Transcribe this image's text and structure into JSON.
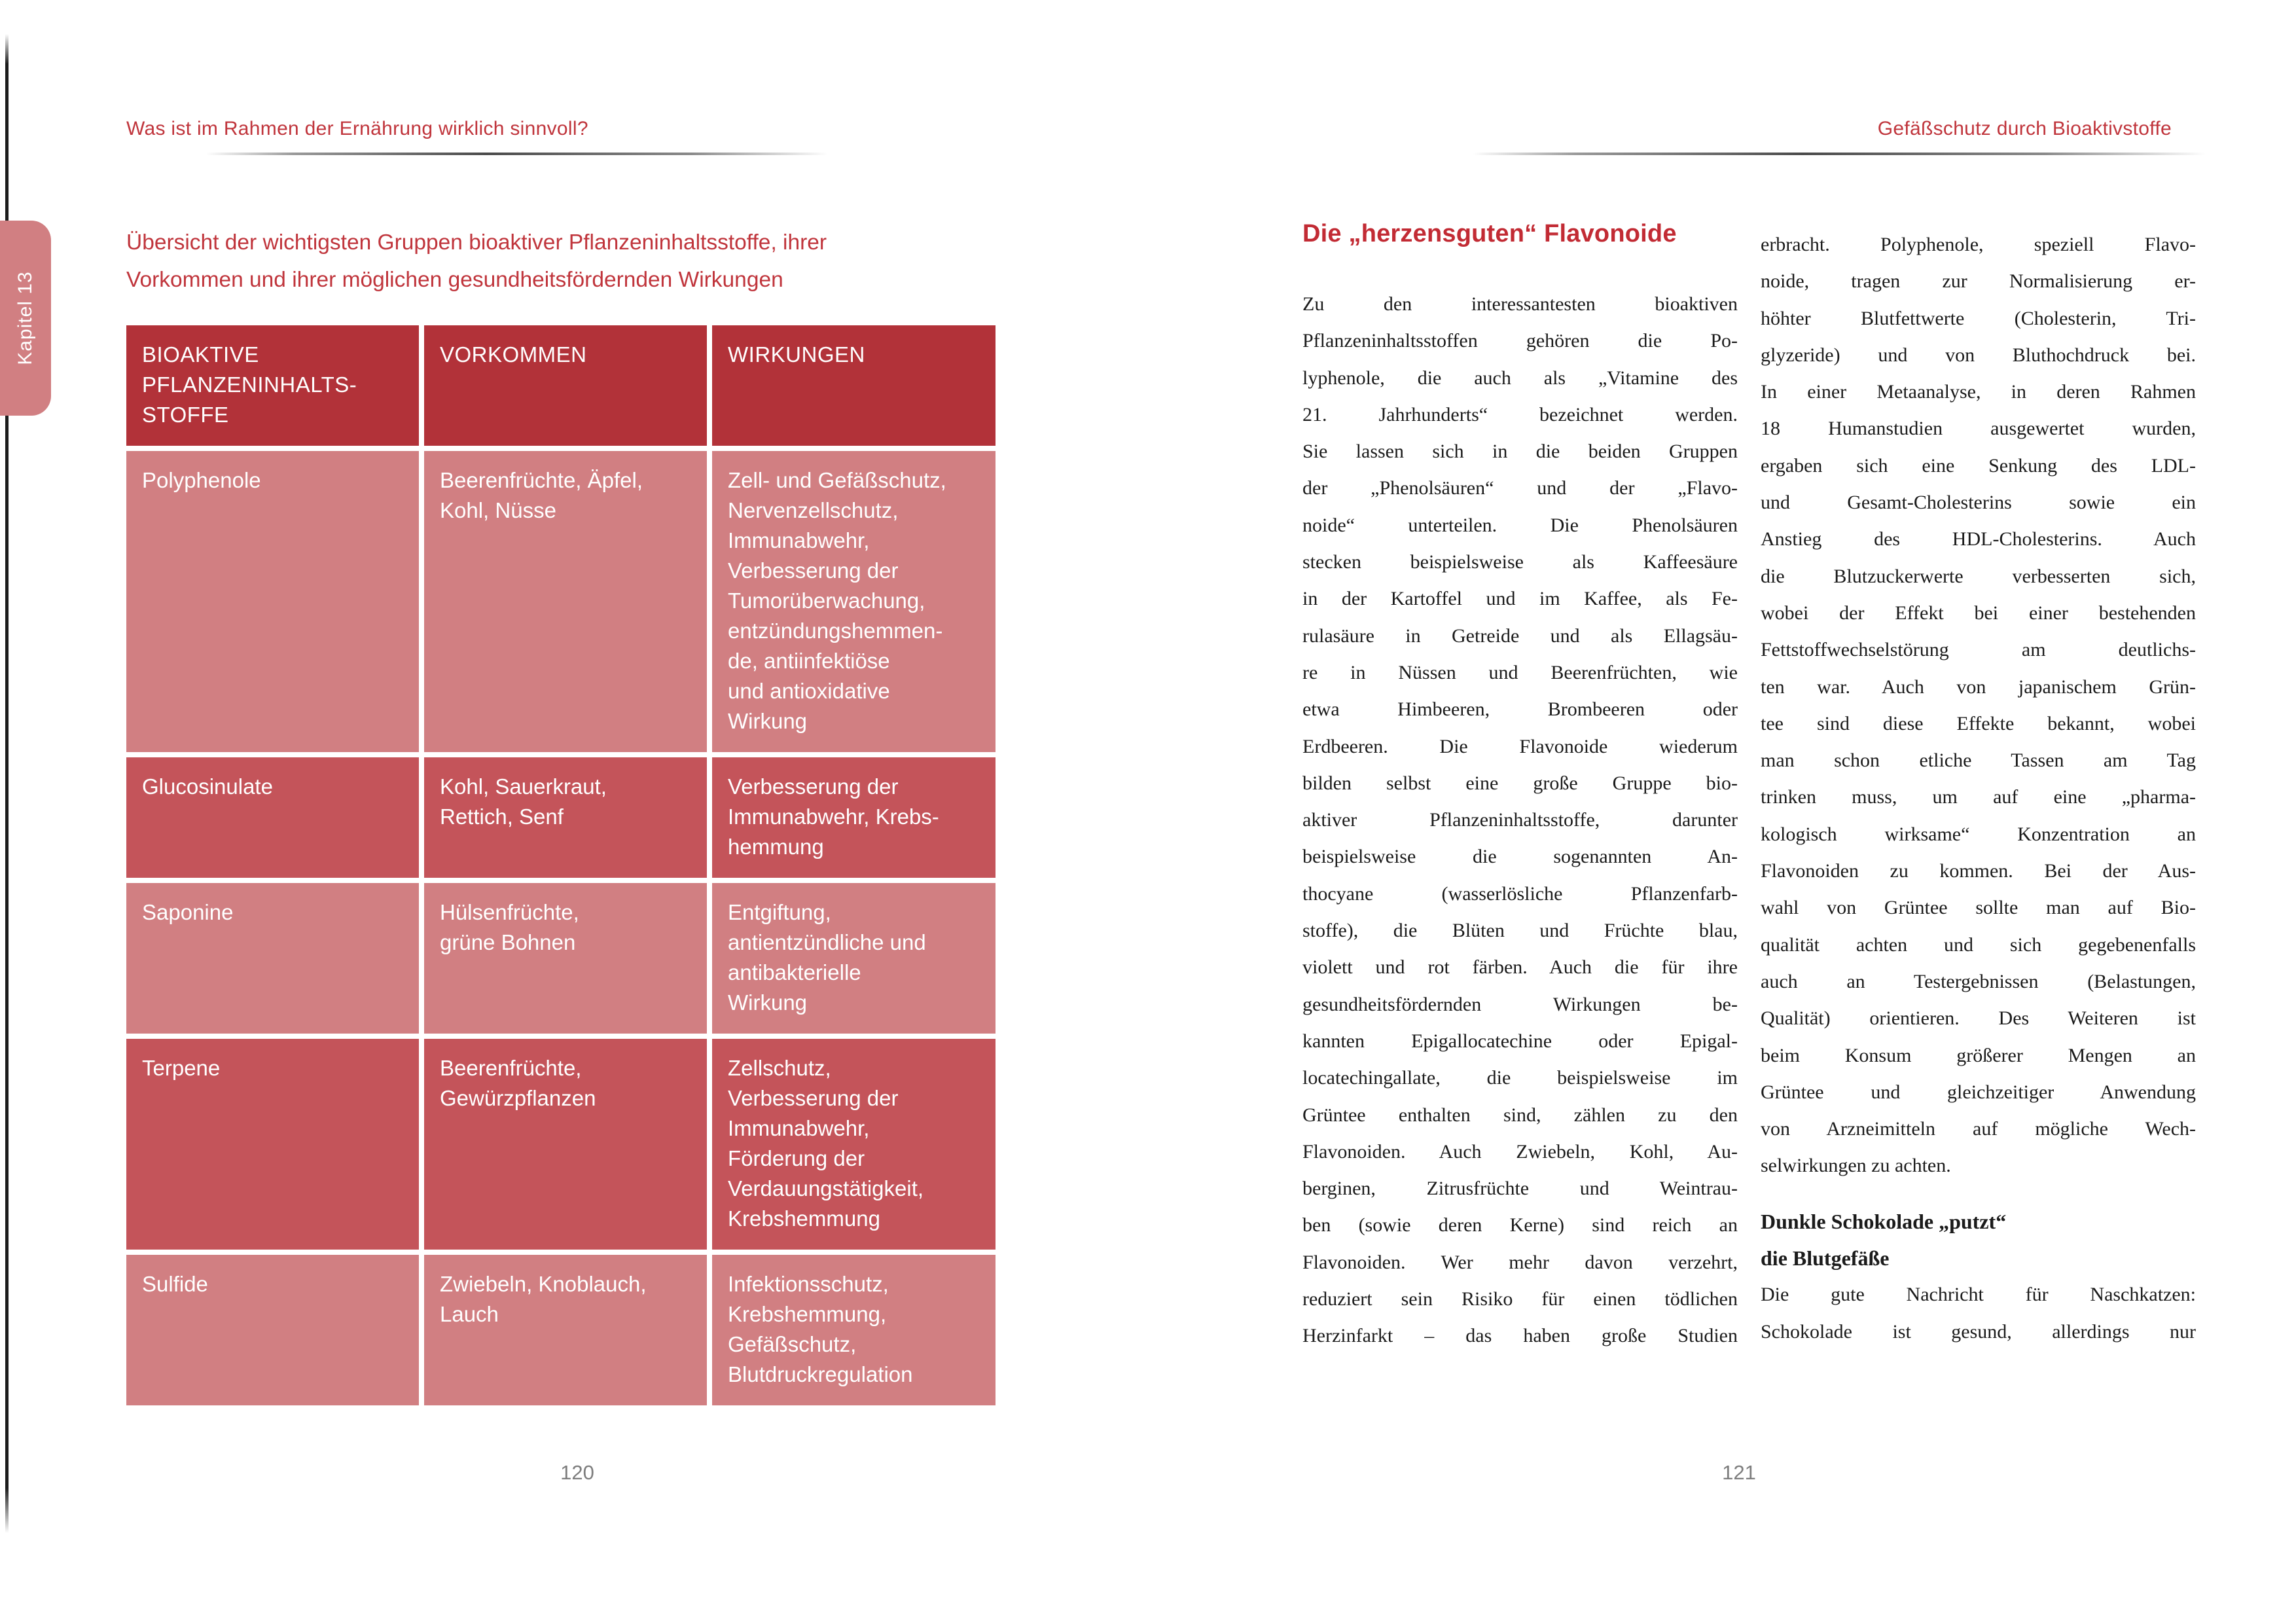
{
  "colors": {
    "accent_red_text": "#C0353C",
    "table_header_bg": "#B23239",
    "table_row_dark": "#C4545A",
    "table_row_light": "#D17F82",
    "body_text": "#1b1b1b",
    "page_number_gray": "#7d7d7d"
  },
  "left_page": {
    "running_head": "Was ist im Rahmen der Ernährung wirklich sinnvoll?",
    "chapter_tab": "Kapitel 13",
    "table_title_lines": [
      "Übersicht der wichtigsten Gruppen bioaktiver Pflanzeninhaltsstoffe, ihrer",
      "Vorkommen und ihrer möglichen gesundheitsfördernden Wirkungen"
    ],
    "table": {
      "header_cells": [
        [
          "BIOAKTIVE",
          "PFLANZENINHALTS-",
          "STOFFE"
        ],
        [
          "VORKOMMEN"
        ],
        [
          "WIRKUNGEN"
        ]
      ],
      "rows": [
        {
          "shade": "light",
          "cells": [
            [
              "Polyphenole"
            ],
            [
              "Beerenfrüchte, Äpfel,",
              "Kohl, Nüsse"
            ],
            [
              "Zell- und Gefäßschutz,",
              "Nervenzellschutz,",
              "Immunabwehr,",
              "Verbesserung der",
              "Tumorüberwachung,",
              "entzündungshemmen-",
              "de, antiinfektiöse",
              "und antioxidative",
              "Wirkung"
            ]
          ]
        },
        {
          "shade": "dark",
          "cells": [
            [
              "Glucosinulate"
            ],
            [
              "Kohl, Sauerkraut,",
              "Rettich, Senf"
            ],
            [
              "Verbesserung der",
              "Immunabwehr, Krebs-",
              "hemmung"
            ]
          ]
        },
        {
          "shade": "light",
          "cells": [
            [
              "Saponine"
            ],
            [
              "Hülsenfrüchte,",
              "grüne Bohnen"
            ],
            [
              "Entgiftung,",
              "antientzündliche und",
              "antibakterielle",
              "Wirkung"
            ]
          ]
        },
        {
          "shade": "dark",
          "cells": [
            [
              "Terpene"
            ],
            [
              "Beerenfrüchte,",
              "Gewürzpflanzen"
            ],
            [
              "Zellschutz,",
              "Verbesserung der",
              "Immunabwehr,",
              "Förderung der",
              "Verdauungstätigkeit,",
              "Krebshemmung"
            ]
          ]
        },
        {
          "shade": "light",
          "cells": [
            [
              "Sulfide"
            ],
            [
              "Zwiebeln, Knoblauch,",
              "Lauch"
            ],
            [
              "Infektionsschutz,",
              "Krebshemmung,",
              "Gefäßschutz,",
              "Blutdruckregulation"
            ]
          ]
        }
      ]
    },
    "page_number": "120"
  },
  "right_page": {
    "running_head": "Gefäßschutz durch Bioaktivstoffe",
    "heading": "Die „herzensguten“ Flavonoide",
    "column1_lines": [
      "Zu den interessantesten bioaktiven",
      "Pflanzeninhaltsstoffen gehören die Po-",
      "lyphenole, die auch als „Vitamine des",
      "21. Jahrhunderts“ bezeichnet werden.",
      "Sie lassen sich in die beiden Gruppen",
      "der „Phenolsäuren“ und der „Flavo-",
      "noide“ unterteilen. Die Phenolsäuren",
      "stecken beispielsweise als Kaffeesäure",
      "in der Kartoffel und im Kaffee, als Fe-",
      "rulasäure in Getreide und als Ellagsäu-",
      "re in Nüssen und Beerenfrüchten, wie",
      "etwa Himbeeren, Brombeeren oder",
      "Erdbeeren. Die Flavonoide wiederum",
      "bilden selbst eine große Gruppe bio-",
      "aktiver Pflanzeninhaltsstoffe, darunter",
      "beispielsweise die sogenannten An-",
      "thocyane (wasserlösliche Pflanzenfarb-",
      "stoffe), die Blüten und Früchte blau,",
      "violett und rot färben. Auch die für ihre",
      "gesundheitsfördernden Wirkungen be-",
      "kannten Epigallocatechine oder Epigal-",
      "locatechingallate, die beispielsweise im",
      "Grüntee enthalten sind, zählen zu den",
      "Flavonoiden. Auch Zwiebeln, Kohl, Au-",
      "berginen, Zitrusfrüchte und Weintrau-",
      "ben (sowie deren Kerne) sind reich an",
      "Flavonoiden. Wer mehr davon verzehrt,",
      "reduziert sein Risiko für einen tödlichen",
      "Herzinfarkt – das haben große Studien"
    ],
    "column2_blocks": [
      {
        "style": "justify",
        "text": "erbracht. Polyphenole, speziell Flavo-"
      },
      {
        "style": "justify",
        "text": "noide, tragen zur Normalisierung er-"
      },
      {
        "style": "justify",
        "text": "höhter Blutfettwerte (Cholesterin, Tri-"
      },
      {
        "style": "justify",
        "text": "glyzeride) und von Bluthochdruck bei."
      },
      {
        "style": "justify",
        "text": "In einer Metaanalyse, in deren Rahmen"
      },
      {
        "style": "justify",
        "text": "18 Humanstudien ausgewertet wurden,"
      },
      {
        "style": "justify",
        "text": "ergaben sich eine Senkung des LDL-"
      },
      {
        "style": "justify",
        "text": "und Gesamt-Cholesterins sowie ein"
      },
      {
        "style": "justify",
        "text": "Anstieg des HDL-Cholesterins. Auch"
      },
      {
        "style": "justify",
        "text": "die Blutzuckerwerte verbesserten sich,"
      },
      {
        "style": "justify",
        "text": "wobei der Effekt bei einer bestehenden"
      },
      {
        "style": "justify",
        "text": "Fettstoffwechselstörung am deutlichs-"
      },
      {
        "style": "justify",
        "text": "ten war. Auch von japanischem Grün-"
      },
      {
        "style": "justify",
        "text": "tee sind diese Effekte bekannt, wobei"
      },
      {
        "style": "justify",
        "text": "man schon etliche Tassen am Tag"
      },
      {
        "style": "justify",
        "text": "trinken muss, um auf eine „pharma-"
      },
      {
        "style": "justify",
        "text": "kologisch wirksame“ Konzentration an"
      },
      {
        "style": "justify",
        "text": "Flavonoiden zu kommen. Bei der Aus-"
      },
      {
        "style": "justify",
        "text": "wahl von Grüntee sollte man auf Bio-"
      },
      {
        "style": "justify",
        "text": "qualität achten und sich gegebenenfalls"
      },
      {
        "style": "justify",
        "text": "auch an Testergebnissen (Belastungen,"
      },
      {
        "style": "justify",
        "text": "Qualität) orientieren. Des Weiteren ist"
      },
      {
        "style": "justify",
        "text": "beim Konsum größerer Mengen an"
      },
      {
        "style": "justify",
        "text": "Grüntee und gleichzeitiger Anwendung"
      },
      {
        "style": "justify",
        "text": "von Arzneimitteln auf mögliche Wech-"
      },
      {
        "style": "last",
        "text": "selwirkungen zu achten."
      },
      {
        "style": "gap",
        "text": ""
      },
      {
        "style": "bold",
        "text": "Dunkle Schokolade „putzt“"
      },
      {
        "style": "bold",
        "text": "die Blutgefäße"
      },
      {
        "style": "justify",
        "text": "Die gute Nachricht für Naschkatzen:"
      },
      {
        "style": "justify",
        "text": "Schokolade ist gesund, allerdings nur"
      }
    ],
    "page_number": "121"
  }
}
